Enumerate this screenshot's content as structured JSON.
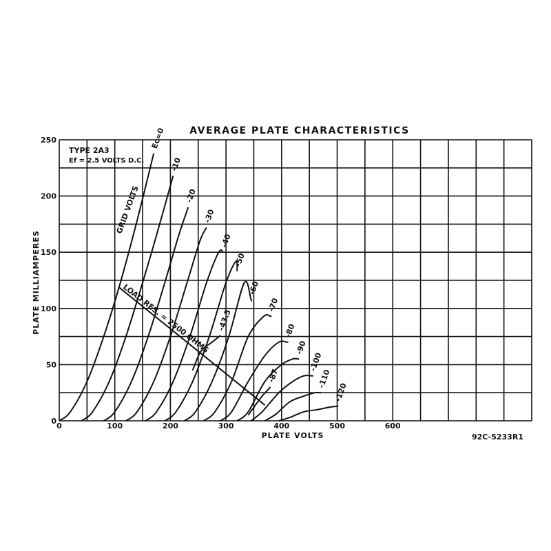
{
  "chart_data": {
    "type": "line",
    "title": "AVERAGE PLATE CHARACTERISTICS",
    "xlabel": "PLATE VOLTS",
    "ylabel": "PLATE MILLIAMPERES",
    "xlim": [
      0,
      850
    ],
    "ylim": [
      0,
      250
    ],
    "x_ticks": [
      0,
      100,
      200,
      300,
      400,
      500,
      600
    ],
    "y_ticks": [
      0,
      50,
      100,
      150,
      200,
      250
    ],
    "grid": true,
    "annotations": {
      "tube_type": "TYPE 2A3",
      "filament": "Ef = 2.5 VOLTS D.C.",
      "grid_volts_label": "GRID VOLTS",
      "load_label": "LOAD RES. = 2500 OHMS",
      "drawing_number": "92C-5233R1"
    },
    "load_line": {
      "name": "LOAD RES. = 2500 OHMS",
      "x": [
        107,
        370
      ],
      "y": [
        119,
        14
      ]
    },
    "series": [
      {
        "name": "Ec=0",
        "x": [
          0,
          20,
          50,
          80,
          110,
          140,
          170
        ],
        "y": [
          0,
          8,
          35,
          75,
          123,
          178,
          238
        ]
      },
      {
        "name": "-10",
        "x": [
          40,
          60,
          90,
          120,
          150,
          175,
          205
        ],
        "y": [
          0,
          8,
          35,
          75,
          123,
          165,
          218
        ]
      },
      {
        "name": "-20",
        "x": [
          80,
          100,
          130,
          160,
          190,
          215,
          232
        ],
        "y": [
          0,
          8,
          35,
          75,
          123,
          165,
          190
        ]
      },
      {
        "name": "-30",
        "x": [
          120,
          140,
          170,
          200,
          230,
          253,
          265
        ],
        "y": [
          0,
          8,
          35,
          75,
          123,
          160,
          172
        ]
      },
      {
        "name": "-40",
        "x": [
          155,
          175,
          205,
          235,
          265,
          287,
          295
        ],
        "y": [
          0,
          8,
          35,
          75,
          123,
          150,
          150
        ]
      },
      {
        "name": "-50",
        "x": [
          190,
          210,
          240,
          270,
          300,
          318,
          320
        ],
        "y": [
          0,
          8,
          35,
          75,
          123,
          142,
          133
        ]
      },
      {
        "name": "-60",
        "x": [
          225,
          245,
          275,
          305,
          333,
          345,
          345
        ],
        "y": [
          0,
          8,
          35,
          75,
          123,
          108,
          108
        ]
      },
      {
        "name": "-70",
        "x": [
          260,
          280,
          310,
          340,
          368,
          380,
          380
        ],
        "y": [
          0,
          8,
          35,
          75,
          93,
          93,
          93
        ]
      },
      {
        "name": "-80",
        "x": [
          290,
          310,
          340,
          370,
          395,
          410,
          410
        ],
        "y": [
          0,
          8,
          35,
          58,
          70,
          70,
          70
        ]
      },
      {
        "name": "-90",
        "x": [
          320,
          340,
          370,
          400,
          420,
          430,
          430
        ],
        "y": [
          0,
          8,
          35,
          50,
          55,
          55,
          55
        ]
      },
      {
        "name": "-100",
        "x": [
          345,
          365,
          395,
          420,
          440,
          455,
          455
        ],
        "y": [
          0,
          8,
          25,
          35,
          40,
          40,
          40
        ]
      },
      {
        "name": "-110",
        "x": [
          370,
          390,
          415,
          440,
          460,
          470,
          470
        ],
        "y": [
          0,
          6,
          17,
          22,
          25,
          25,
          25
        ]
      },
      {
        "name": "-120",
        "x": [
          395,
          415,
          440,
          465,
          485,
          500,
          500
        ],
        "y": [
          0,
          3,
          8,
          10,
          12,
          13,
          13
        ]
      },
      {
        "name": "-43.5",
        "x": [
          240,
          255,
          275,
          290
        ],
        "y": [
          45,
          62,
          70,
          76
        ]
      },
      {
        "name": "-87",
        "x": [
          340,
          350,
          365,
          380
        ],
        "y": [
          5,
          12,
          22,
          30
        ]
      }
    ]
  }
}
